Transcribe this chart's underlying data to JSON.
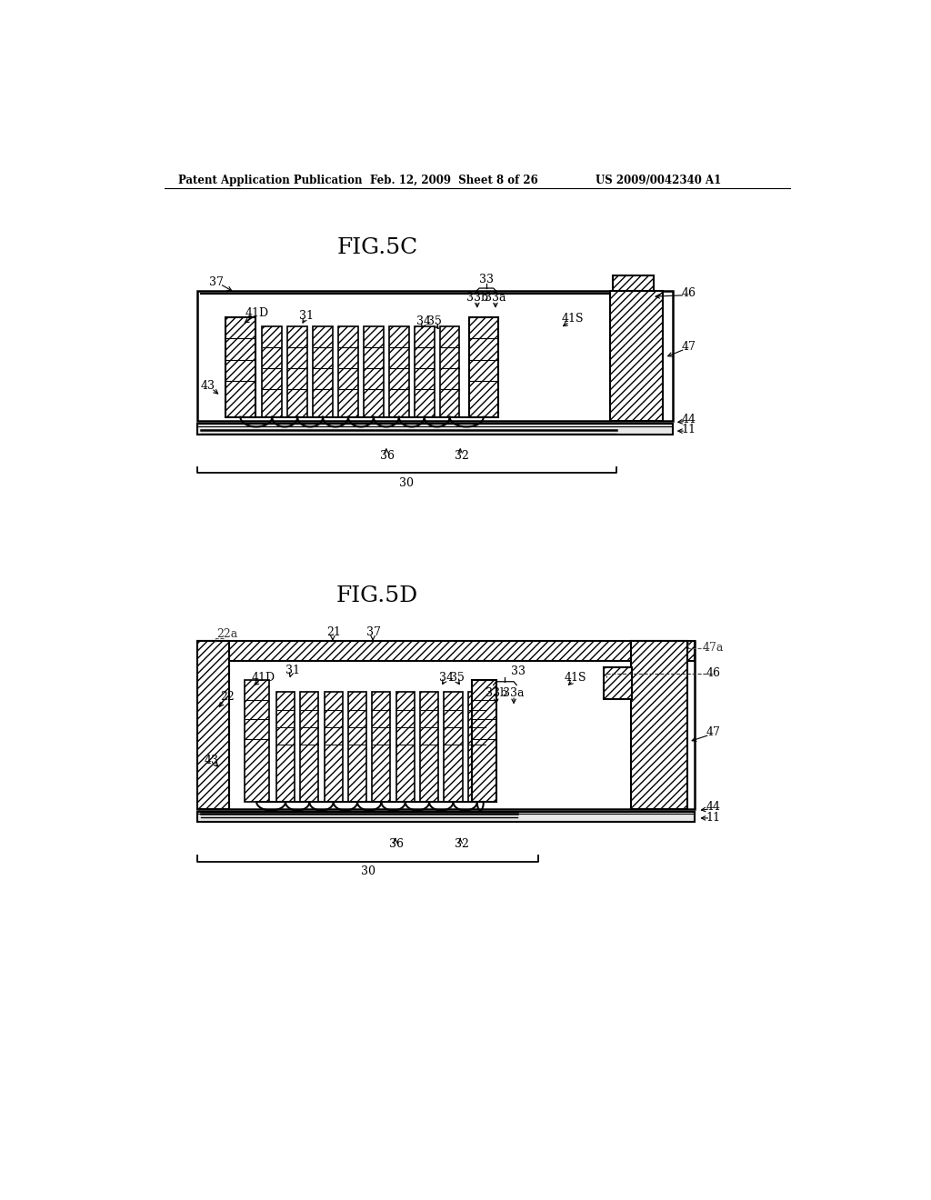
{
  "background_color": "#ffffff",
  "header_left": "Patent Application Publication",
  "header_mid": "Feb. 12, 2009  Sheet 8 of 26",
  "header_right": "US 2009/0042340 A1",
  "fig5c_title": "FIG.5C",
  "fig5d_title": "FIG.5D",
  "line_color": "#000000"
}
